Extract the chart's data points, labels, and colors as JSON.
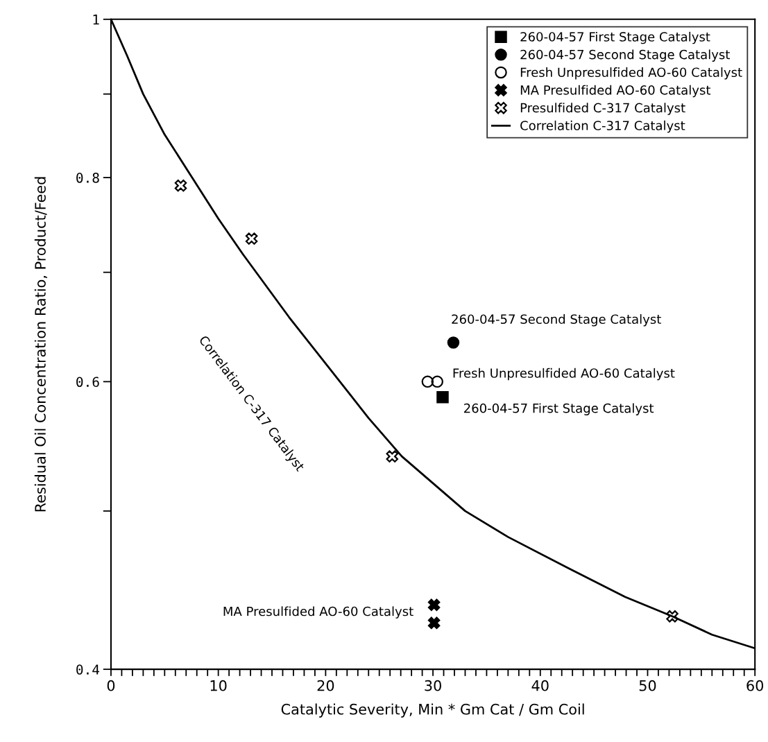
{
  "chart_data": {
    "type": "scatter",
    "xlabel": "Catalytic Severity, Min * Gm Cat / Gm Coil",
    "ylabel": "Residual Oil Concentration Ratio, Product/Feed",
    "log": "y",
    "xlim": [
      0,
      60
    ],
    "ylim": [
      0.4,
      1
    ],
    "xticks": [
      0,
      {
        "value": 1,
        "label": null
      },
      {
        "value": 2,
        "label": null
      },
      {
        "value": 3,
        "label": null
      },
      {
        "value": 4,
        "label": null
      },
      {
        "value": 5,
        "label": null
      },
      {
        "value": 6,
        "label": null
      },
      {
        "value": 7,
        "label": null
      },
      {
        "value": 8,
        "label": null
      },
      {
        "value": 9,
        "label": null
      },
      10,
      {
        "value": 11,
        "label": null
      },
      {
        "value": 12,
        "label": null
      },
      {
        "value": 13,
        "label": null
      },
      {
        "value": 14,
        "label": null
      },
      {
        "value": 15,
        "label": null
      },
      {
        "value": 16,
        "label": null
      },
      {
        "value": 17,
        "label": null
      },
      {
        "value": 18,
        "label": null
      },
      {
        "value": 19,
        "label": null
      },
      20,
      {
        "value": 21,
        "label": null
      },
      {
        "value": 22,
        "label": null
      },
      {
        "value": 23,
        "label": null
      },
      {
        "value": 24,
        "label": null
      },
      {
        "value": 25,
        "label": null
      },
      {
        "value": 26,
        "label": null
      },
      {
        "value": 27,
        "label": null
      },
      {
        "value": 28,
        "label": null
      },
      {
        "value": 29,
        "label": null
      },
      30,
      {
        "value": 31,
        "label": null
      },
      {
        "value": 32,
        "label": null
      },
      {
        "value": 33,
        "label": null
      },
      {
        "value": 34,
        "label": null
      },
      {
        "value": 35,
        "label": null
      },
      {
        "value": 36,
        "label": null
      },
      {
        "value": 37,
        "label": null
      },
      {
        "value": 38,
        "label": null
      },
      {
        "value": 39,
        "label": null
      },
      40,
      {
        "value": 41,
        "label": null
      },
      {
        "value": 42,
        "label": null
      },
      {
        "value": 43,
        "label": null
      },
      {
        "value": 44,
        "label": null
      },
      {
        "value": 45,
        "label": null
      },
      {
        "value": 46,
        "label": null
      },
      {
        "value": 47,
        "label": null
      },
      {
        "value": 48,
        "label": null
      },
      {
        "value": 49,
        "label": null
      },
      50,
      {
        "value": 51,
        "label": null
      },
      {
        "value": 52,
        "label": null
      },
      {
        "value": 53,
        "label": null
      },
      {
        "value": 54,
        "label": null
      },
      {
        "value": 55,
        "label": null
      },
      {
        "value": 56,
        "label": null
      },
      {
        "value": 57,
        "label": null
      },
      {
        "value": 58,
        "label": null
      },
      {
        "value": 59,
        "label": null
      },
      60
    ],
    "yticks": [
      0.4,
      {
        "value": 0.5,
        "label": null
      },
      0.6,
      {
        "value": 0.7,
        "label": null
      },
      0.8,
      {
        "value": 0.9,
        "label": null
      },
      1
    ],
    "legend": "top right",
    "grid": false,
    "series": [
      {
        "name": "260-04-57 First Stage Catalyst",
        "marker": "square",
        "color": "#000000",
        "x": [
          30.9
        ],
        "values": [
          0.587
        ]
      },
      {
        "name": "260-04-57 Second Stage Catalyst",
        "marker": "circle",
        "color": "#000000",
        "x": [
          31.9
        ],
        "values": [
          0.634
        ]
      },
      {
        "name": "Fresh Unpresulfided AO-60 Catalyst",
        "marker": "circle",
        "color": "#000000",
        "x": [
          29.5,
          30.4
        ],
        "values": [
          0.6,
          0.6
        ]
      },
      {
        "name": "MA Presulfided AO-60 Catalyst",
        "marker": "cross",
        "color": "#000000",
        "x": [
          30.1,
          30.1
        ],
        "values": [
          0.438,
          0.427
        ]
      },
      {
        "name": "Presulfided C-317 Catalyst",
        "marker": "cross",
        "color": "#000000",
        "x": [
          6.5,
          13.1,
          26.2,
          52.3
        ],
        "values": [
          0.791,
          0.734,
          0.54,
          0.431
        ]
      },
      {
        "name": "Correlation C-317 Catalyst",
        "type": "line",
        "marker": "none",
        "line_style": "solid",
        "color": "#000000",
        "x": [
          0,
          1.5,
          3,
          5,
          7.3,
          10,
          12.3,
          16.6,
          20.9,
          24,
          27.1,
          33,
          37,
          42.7,
          47.9,
          52.3,
          56,
          60
        ],
        "values": [
          1,
          0.95,
          0.9,
          0.85,
          0.805,
          0.755,
          0.718,
          0.657,
          0.605,
          0.57,
          0.54,
          0.5,
          0.482,
          0.461,
          0.443,
          0.431,
          0.42,
          0.412
        ]
      }
    ],
    "annotations": [
      "260-04-57 Second Stage Catalyst",
      "Fresh Unpresulfided AO-60 Catalyst",
      "260-04-57 First Stage Catalyst",
      "MA Presulfided AO-60 Catalyst",
      "Correlation C-317 Catalyst"
    ]
  }
}
